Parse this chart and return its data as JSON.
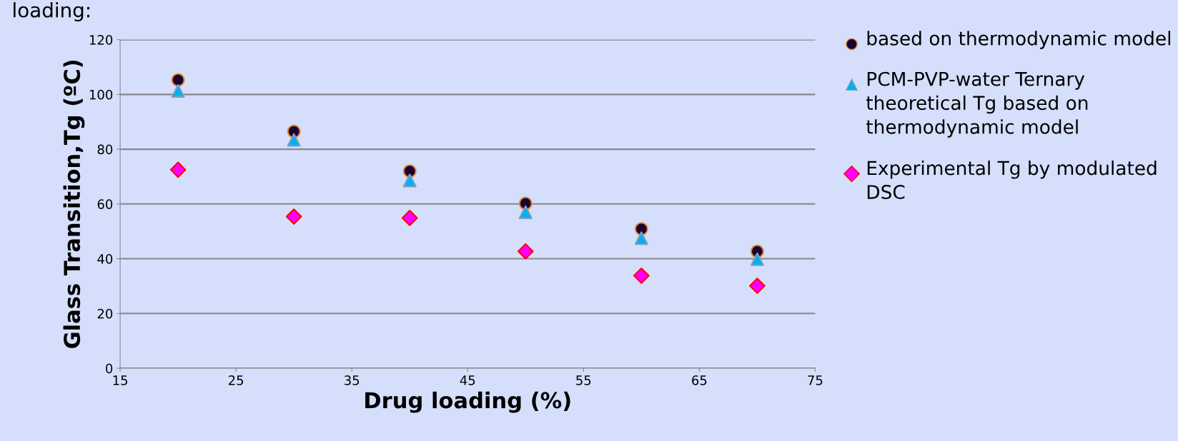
{
  "chart_data": {
    "type": "scatter",
    "title": "loading:",
    "xlabel": "Drug loading (%)",
    "ylabel": "Glass Transition,Tg (ºC)",
    "x": [
      20,
      30,
      40,
      50,
      60,
      70
    ],
    "series": [
      {
        "name": "based on thermodynamic model",
        "color": "#1a0033",
        "marker": "circle",
        "values": [
          105.3,
          86.5,
          72,
          60.2,
          50.9,
          42.7
        ]
      },
      {
        "name": "PCM-PVP-water Ternary theoretical Tg based on thermodynamic model",
        "color": "#00b0f0",
        "marker": "triangle",
        "values": [
          101.3,
          83.4,
          68.6,
          57,
          47.5,
          39.8
        ]
      },
      {
        "name": "Experimental Tg by modulated DSC",
        "color": "#ff00ff",
        "marker": "diamond",
        "values": [
          72.5,
          55.4,
          54.9,
          42.7,
          33.8,
          30.1
        ]
      }
    ],
    "xlim": [
      15,
      75
    ],
    "xticks": [
      15,
      25,
      35,
      45,
      55,
      65,
      75
    ],
    "ylim": [
      0,
      120
    ],
    "yticks": [
      0,
      20,
      40,
      60,
      80,
      100,
      120
    ],
    "grid": "y",
    "legend": "right"
  }
}
